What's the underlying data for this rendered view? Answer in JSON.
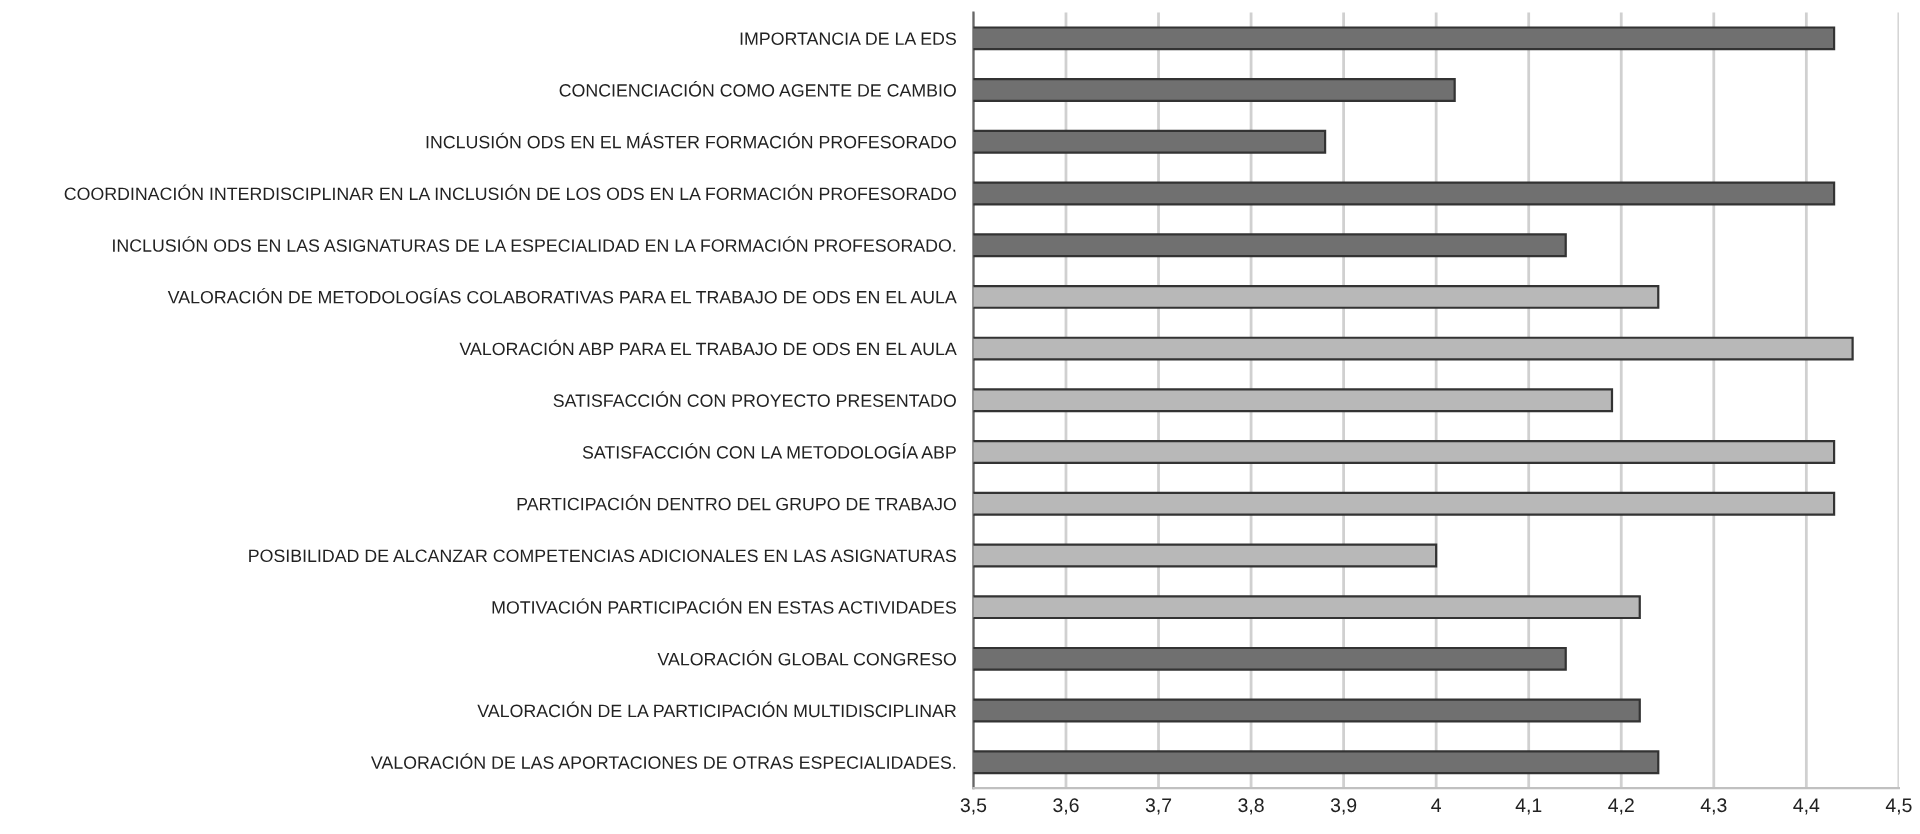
{
  "chart_data": {
    "type": "bar",
    "orientation": "horizontal",
    "categories": [
      "IMPORTANCIA DE LA EDS",
      "CONCIENCIACIÓN COMO AGENTE DE CAMBIO",
      "INCLUSIÓN ODS EN EL MÁSTER FORMACIÓN PROFESORADO",
      "COORDINACIÓN INTERDISCIPLINAR EN LA INCLUSIÓN DE LOS ODS EN LA FORMACIÓN PROFESORADO",
      "INCLUSIÓN ODS EN LAS ASIGNATURAS DE LA ESPECIALIDAD EN LA FORMACIÓN PROFESORADO.",
      "VALORACIÓN DE METODOLOGÍAS COLABORATIVAS PARA EL TRABAJO DE ODS EN EL AULA",
      "VALORACIÓN ABP PARA EL TRABAJO DE ODS EN EL AULA",
      "SATISFACCIÓN CON PROYECTO PRESENTADO",
      "SATISFACCIÓN CON LA METODOLOGÍA ABP",
      "PARTICIPACIÓN DENTRO DEL GRUPO DE TRABAJO",
      "POSIBILIDAD DE ALCANZAR COMPETENCIAS ADICIONALES EN LAS ASIGNATURAS",
      "MOTIVACIÓN PARTICIPACIÓN EN ESTAS ACTIVIDADES",
      "VALORACIÓN GLOBAL CONGRESO",
      "VALORACIÓN DE LA PARTICIPACIÓN MULTIDISCIPLINAR",
      "VALORACIÓN DE LAS APORTACIONES DE OTRAS ESPECIALIDADES."
    ],
    "values": [
      4.43,
      4.02,
      3.88,
      4.43,
      4.14,
      4.24,
      4.45,
      4.19,
      4.43,
      4.43,
      4.0,
      4.22,
      4.14,
      4.22,
      4.24
    ],
    "colors": [
      "#707070",
      "#707070",
      "#707070",
      "#707070",
      "#707070",
      "#b8b8b8",
      "#b8b8b8",
      "#b8b8b8",
      "#b8b8b8",
      "#b8b8b8",
      "#b8b8b8",
      "#b8b8b8",
      "#707070",
      "#707070",
      "#707070"
    ],
    "xlim": [
      3.5,
      4.5
    ],
    "xticks": [
      {
        "value": 3.5,
        "label": "3,5"
      },
      {
        "value": 3.6,
        "label": "3,6"
      },
      {
        "value": 3.7,
        "label": "3,7"
      },
      {
        "value": 3.8,
        "label": "3,8"
      },
      {
        "value": 3.9,
        "label": "3,9"
      },
      4,
      {
        "value": 4.1,
        "label": "4,1"
      },
      {
        "value": 4.2,
        "label": "4,2"
      },
      {
        "value": 4.3,
        "label": "4,3"
      },
      {
        "value": 4.4,
        "label": "4,4"
      },
      {
        "value": 4.5,
        "label": "4,5"
      }
    ],
    "grid": "x",
    "legend": false
  }
}
